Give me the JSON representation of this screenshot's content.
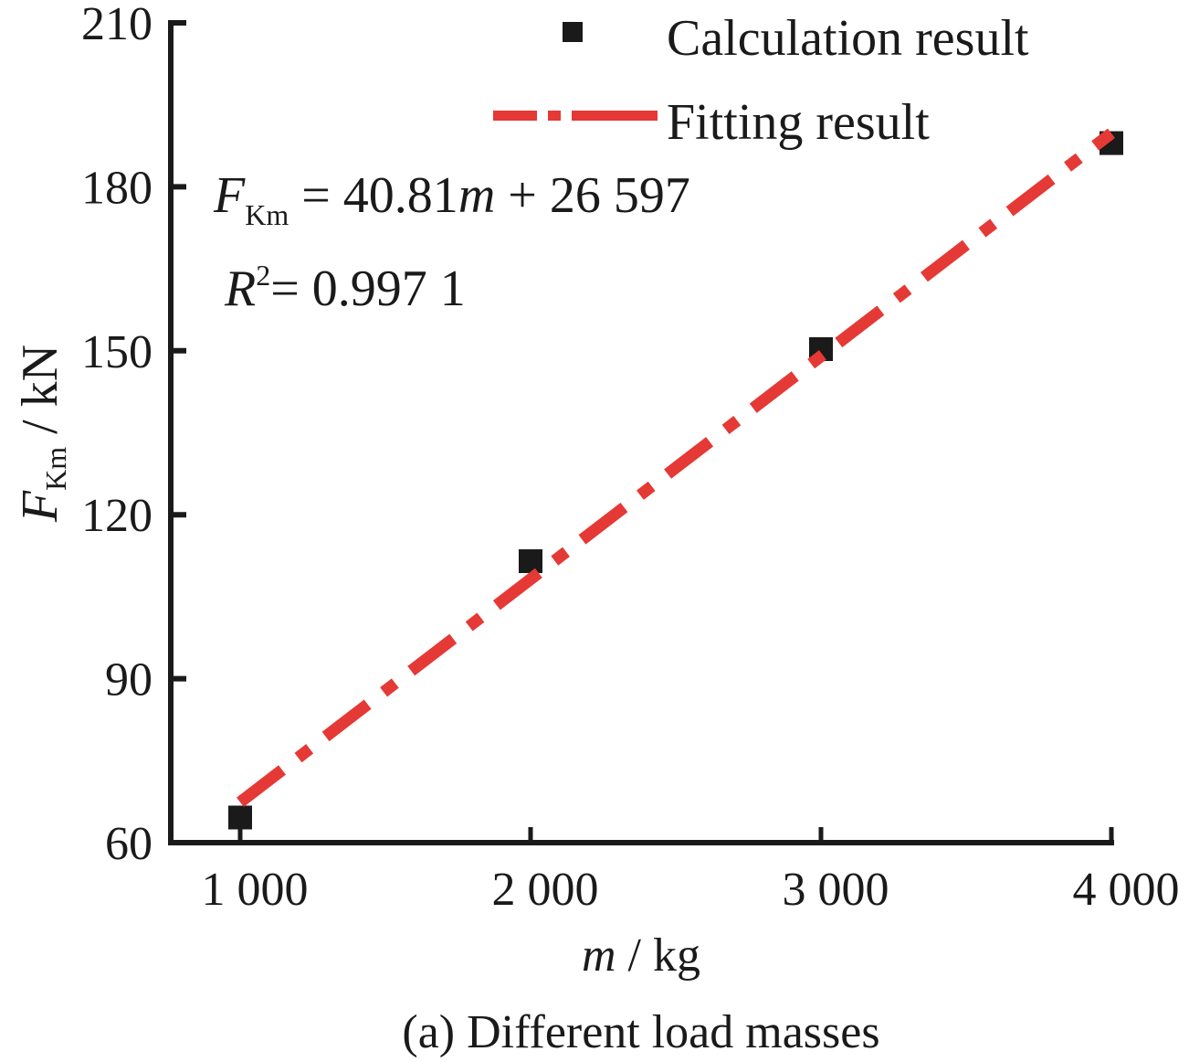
{
  "chart_data": {
    "type": "scatter",
    "title": "",
    "caption": "(a) Different load masses",
    "xlabel": {
      "var": "m",
      "unit": " / kg"
    },
    "ylabel": {
      "var": "F",
      "sub": "Km",
      "unit": " / kN"
    },
    "xlim": [
      760,
      4000
    ],
    "ylim": [
      60,
      210
    ],
    "xticks": [
      1000,
      2000,
      3000,
      4000
    ],
    "xtick_labels": [
      "1 000",
      "2 000",
      "3 000",
      "4 000"
    ],
    "yticks": [
      60,
      90,
      120,
      150,
      180,
      210
    ],
    "ytick_labels": [
      "60",
      "90",
      "120",
      "150",
      "180",
      "210"
    ],
    "grid": false,
    "legend": {
      "placement": "top-right",
      "entries": [
        {
          "label": "Calculation result",
          "marker": "square",
          "color": "#1a1a1a"
        },
        {
          "label": "Fitting result",
          "marker": "dash-dot-line",
          "color": "#e53935"
        }
      ]
    },
    "series": [
      {
        "name": "Calculation result",
        "type": "scatter",
        "color": "#1a1a1a",
        "x": [
          1000,
          2000,
          3000,
          4000
        ],
        "y": [
          64.6,
          111.5,
          150.3,
          188.0
        ]
      },
      {
        "name": "Fitting result",
        "type": "line",
        "style": "dash-dot",
        "color": "#e53935",
        "x": [
          1000,
          4000
        ],
        "y": [
          67.4,
          189.8
        ]
      }
    ],
    "annotations": {
      "equation": {
        "lhs_var": "F",
        "lhs_sub": "Km",
        "eq": " = 40.81",
        "var": "m",
        "rest": " + 26 597"
      },
      "r2": {
        "var": "R",
        "sup": "2",
        "rest": "= 0.997 1"
      }
    }
  }
}
